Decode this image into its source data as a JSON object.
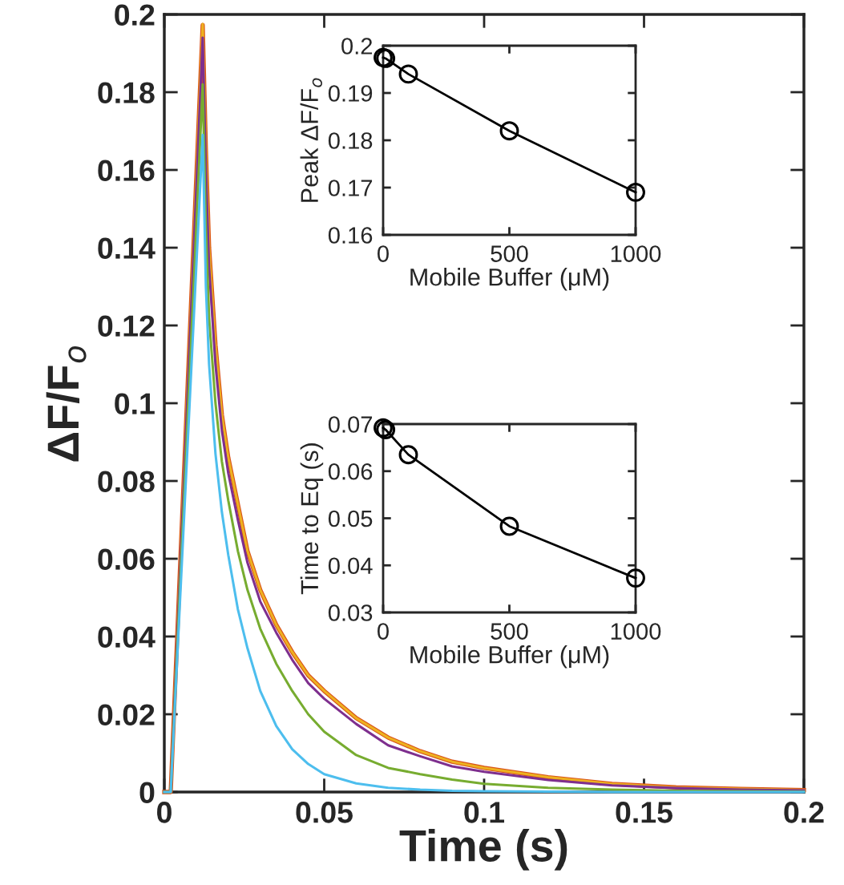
{
  "chart_data": [
    {
      "type": "line",
      "xlabel": "Time (s)",
      "ylabel": "ΔF/F$_{o}$",
      "xlim": [
        0,
        0.2
      ],
      "ylim": [
        0,
        0.2
      ],
      "xticks": [
        0,
        0.05,
        0.1,
        0.15,
        0.2
      ],
      "yticks": [
        0,
        0.02,
        0.04,
        0.06,
        0.08,
        0.1,
        0.12,
        0.14,
        0.16,
        0.18,
        0.2
      ],
      "grid": false,
      "legend": false,
      "marker": "none",
      "line_style": "solid",
      "series": [
        {
          "color": "#d95319",
          "x": [
            0,
            0.002,
            0.012,
            0.013,
            0.014,
            0.016,
            0.018,
            0.02,
            0.023,
            0.026,
            0.03,
            0.035,
            0.04,
            0.045,
            0.05,
            0.06,
            0.07,
            0.08,
            0.09,
            0.1,
            0.12,
            0.14,
            0.16,
            0.18,
            0.2
          ],
          "values": [
            0,
            0,
            0.1973,
            0.165,
            0.14,
            0.115,
            0.097,
            0.086,
            0.074,
            0.062,
            0.052,
            0.043,
            0.036,
            0.03,
            0.026,
            0.019,
            0.014,
            0.0105,
            0.0078,
            0.0062,
            0.0038,
            0.0021,
            0.0012,
            0.0008,
            0.0005
          ]
        },
        {
          "color": "#edb120",
          "x": [
            0,
            0.002,
            0.012,
            0.013,
            0.014,
            0.016,
            0.018,
            0.02,
            0.023,
            0.026,
            0.03,
            0.035,
            0.04,
            0.045,
            0.05,
            0.06,
            0.07,
            0.08,
            0.09,
            0.1,
            0.12,
            0.14,
            0.16,
            0.18,
            0.2
          ],
          "values": [
            0,
            0,
            0.1975,
            0.165,
            0.14,
            0.115,
            0.097,
            0.086,
            0.074,
            0.062,
            0.052,
            0.043,
            0.036,
            0.03,
            0.026,
            0.019,
            0.014,
            0.0105,
            0.0078,
            0.0062,
            0.0038,
            0.0021,
            0.0012,
            0.0008,
            0.0005
          ]
        },
        {
          "color": "#7e2f8e",
          "x": [
            0,
            0.002,
            0.012,
            0.013,
            0.014,
            0.016,
            0.018,
            0.02,
            0.023,
            0.026,
            0.03,
            0.035,
            0.04,
            0.045,
            0.05,
            0.06,
            0.07,
            0.08,
            0.09,
            0.1,
            0.12,
            0.14,
            0.16,
            0.18,
            0.2
          ],
          "values": [
            0,
            0,
            0.194,
            0.16,
            0.135,
            0.11,
            0.093,
            0.082,
            0.07,
            0.059,
            0.049,
            0.041,
            0.034,
            0.028,
            0.024,
            0.0175,
            0.012,
            0.0092,
            0.0066,
            0.0052,
            0.0031,
            0.0017,
            0.001,
            0.0006,
            0.0004
          ]
        },
        {
          "color": "#77ac30",
          "x": [
            0,
            0.002,
            0.012,
            0.013,
            0.014,
            0.016,
            0.018,
            0.02,
            0.023,
            0.026,
            0.03,
            0.035,
            0.04,
            0.045,
            0.05,
            0.06,
            0.07,
            0.08,
            0.09,
            0.1,
            0.12,
            0.14,
            0.16,
            0.18,
            0.2
          ],
          "values": [
            0,
            0,
            0.182,
            0.145,
            0.122,
            0.1,
            0.085,
            0.075,
            0.062,
            0.052,
            0.042,
            0.033,
            0.026,
            0.02,
            0.0155,
            0.0095,
            0.0062,
            0.0046,
            0.0032,
            0.0021,
            0.0011,
            0.0006,
            0.0003,
            0.0002,
            0.0001
          ]
        },
        {
          "color": "#4dbeee",
          "x": [
            0,
            0.002,
            0.012,
            0.013,
            0.014,
            0.016,
            0.018,
            0.02,
            0.023,
            0.026,
            0.03,
            0.035,
            0.04,
            0.045,
            0.05,
            0.06,
            0.07,
            0.08,
            0.09,
            0.1,
            0.12,
            0.14,
            0.2
          ],
          "values": [
            0,
            0,
            0.169,
            0.13,
            0.11,
            0.087,
            0.072,
            0.061,
            0.047,
            0.037,
            0.026,
            0.017,
            0.011,
            0.0072,
            0.0046,
            0.0022,
            0.0011,
            0.0006,
            0.0003,
            0.0002,
            0.0001,
            0,
            0
          ]
        }
      ]
    },
    {
      "type": "line",
      "xlabel": "Mobile Buffer (μM)",
      "ylabel": "Peak ΔF/F$_{o}$",
      "xlim": [
        0,
        1000
      ],
      "ylim": [
        0.16,
        0.2
      ],
      "xticks": [
        0,
        500,
        1000
      ],
      "yticks": [
        0.16,
        0.17,
        0.18,
        0.19,
        0.2
      ],
      "grid": false,
      "legend": false,
      "marker": "circle",
      "line_style": "solid",
      "series": [
        {
          "color": "#000000",
          "x": [
            0,
            10,
            100,
            500,
            1000
          ],
          "values": [
            0.1975,
            0.1973,
            0.194,
            0.182,
            0.169
          ]
        }
      ]
    },
    {
      "type": "line",
      "xlabel": "Mobile Buffer (μM)",
      "ylabel": "Time to Eq (s)",
      "xlim": [
        0,
        1000
      ],
      "ylim": [
        0.03,
        0.07
      ],
      "xticks": [
        0,
        500,
        1000
      ],
      "yticks": [
        0.03,
        0.04,
        0.05,
        0.06,
        0.07
      ],
      "grid": false,
      "legend": false,
      "marker": "circle",
      "line_style": "solid",
      "series": [
        {
          "color": "#000000",
          "x": [
            0,
            10,
            100,
            500,
            1000
          ],
          "values": [
            0.0692,
            0.0688,
            0.0635,
            0.0483,
            0.0373
          ]
        }
      ]
    }
  ]
}
